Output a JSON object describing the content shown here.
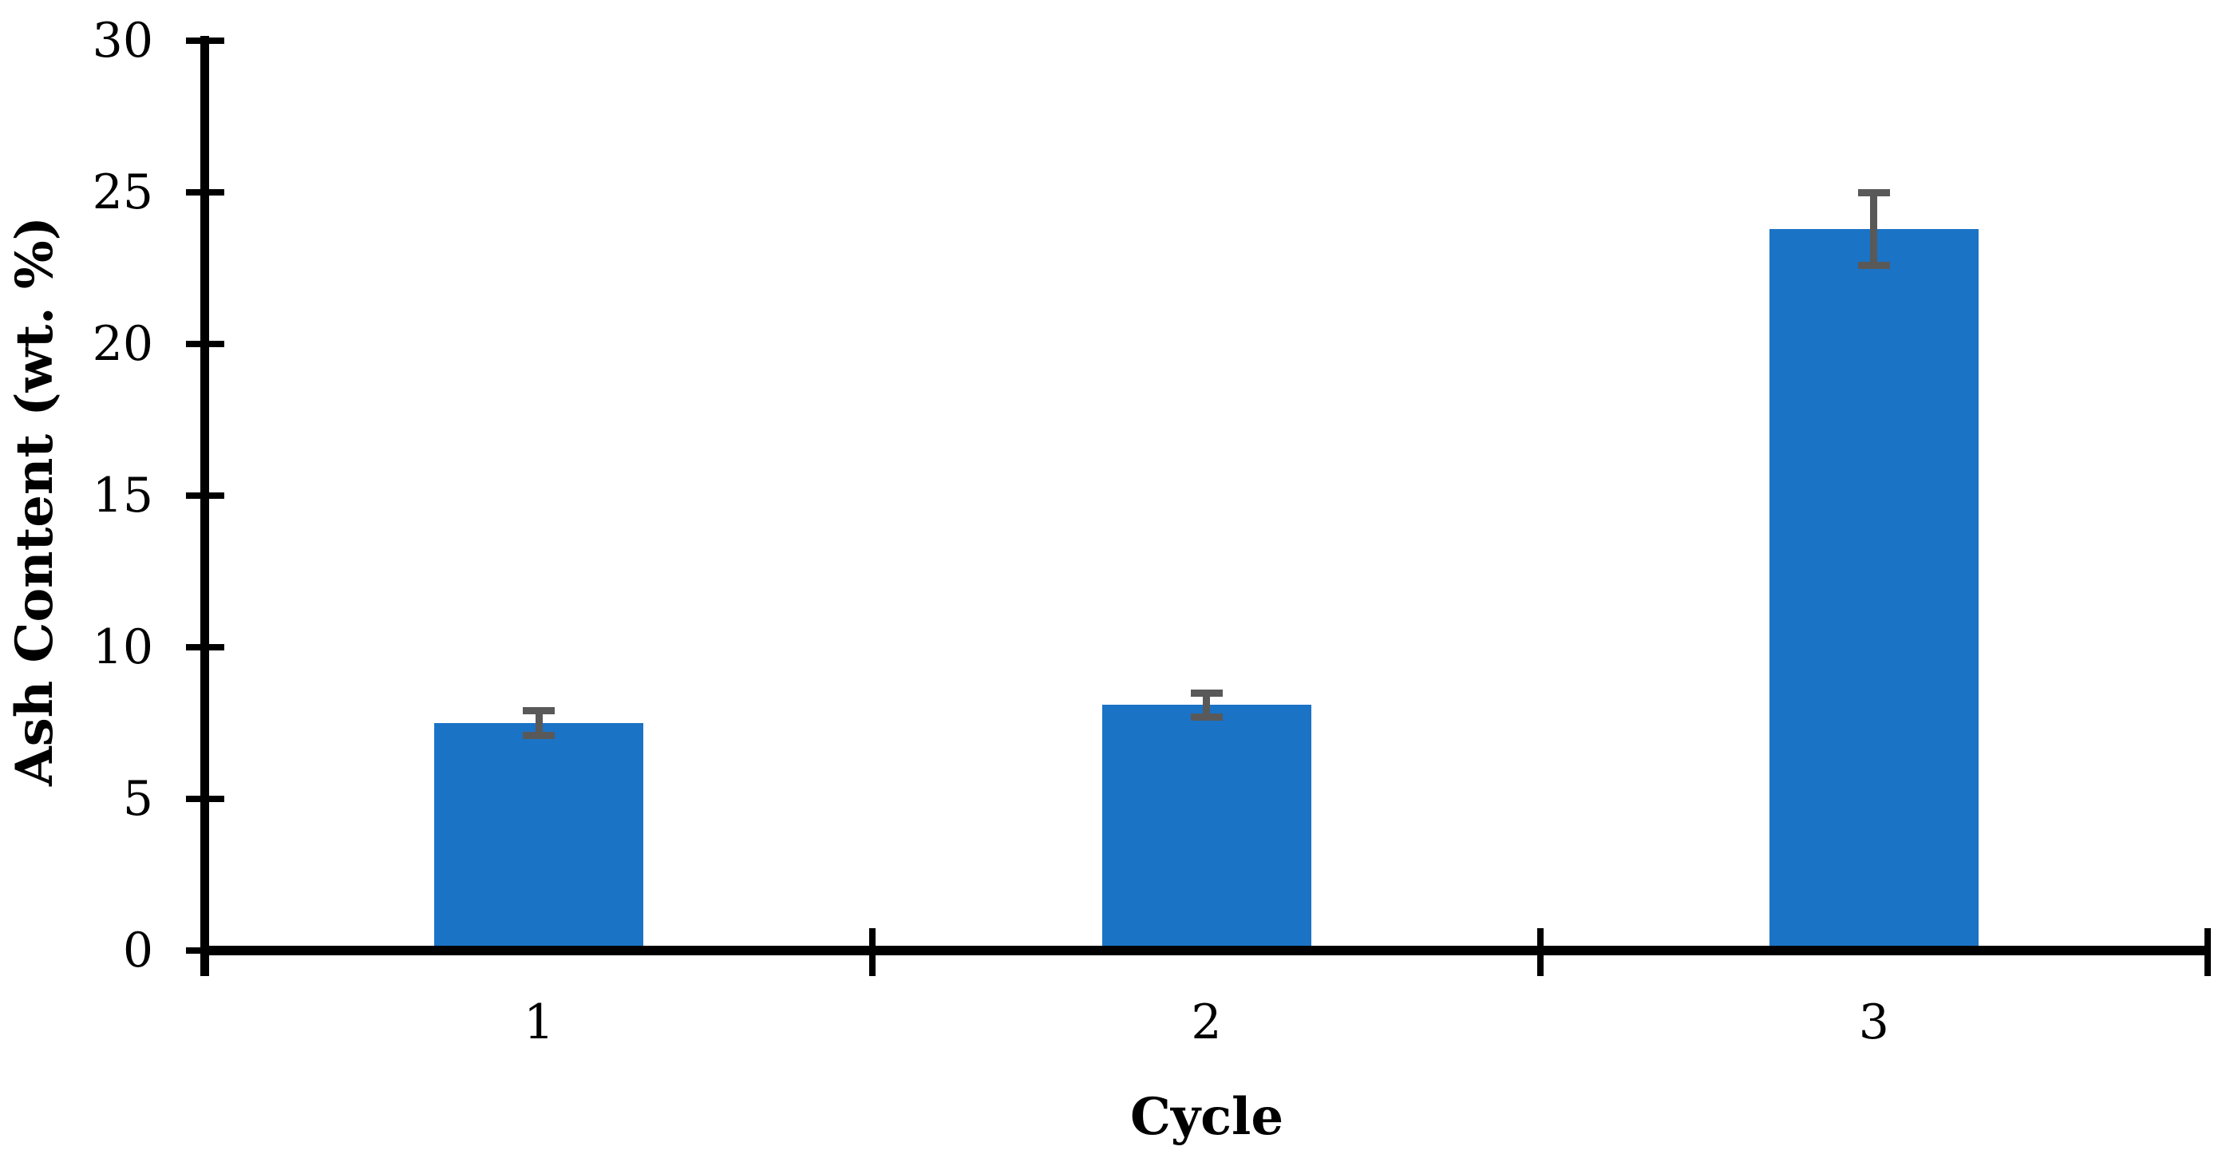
{
  "figure": {
    "background": "#FFFFFF"
  },
  "chart_data": {
    "type": "bar",
    "title": "",
    "xlabel": "Cycle",
    "ylabel": "Ash Content (wt. %)",
    "categories": [
      "1",
      "2",
      "3"
    ],
    "values": [
      7.5,
      8.1,
      23.8
    ],
    "error_bars": [
      0.4,
      0.4,
      1.2
    ],
    "ylim": [
      0,
      30
    ],
    "yticks": [
      0,
      5,
      10,
      15,
      20,
      25,
      30
    ],
    "grid": "off",
    "legend": "none",
    "bar_color": "#1B73C6",
    "error_bar_color": "#595959",
    "axis_color": "#000000",
    "text_color": "#000000"
  }
}
